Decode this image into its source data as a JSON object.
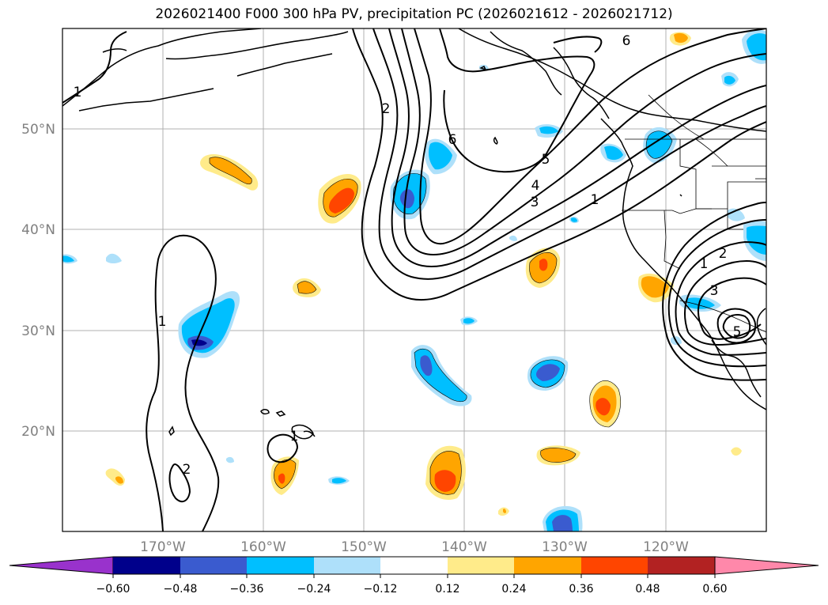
{
  "title": "2026021400 F000 300 hPa PV, precipitation PC (2026021612 - 2026021712)",
  "map": {
    "lat_labels": [
      "50°N",
      "40°N",
      "30°N",
      "20°N"
    ],
    "lon_labels": [
      "170°W",
      "160°W",
      "150°W",
      "140°W",
      "130°W",
      "120°W"
    ],
    "contour_labels": [
      "1",
      "2",
      "6",
      "6",
      "5",
      "4",
      "3",
      "1",
      "1",
      "1",
      "2",
      "3",
      "5",
      "1",
      "2"
    ]
  },
  "colorbar": {
    "ticks": [
      "−0.60",
      "−0.48",
      "−0.36",
      "−0.24",
      "−0.12",
      "0.12",
      "0.24",
      "0.36",
      "0.48",
      "0.60"
    ],
    "colors": [
      "#9932cc",
      "#00008b",
      "#3a5bcf",
      "#00bfff",
      "#aee0fa",
      "#ffffff",
      "#ffeb8a",
      "#ffa500",
      "#ff4500",
      "#b22222",
      "#ff88aa"
    ]
  }
}
